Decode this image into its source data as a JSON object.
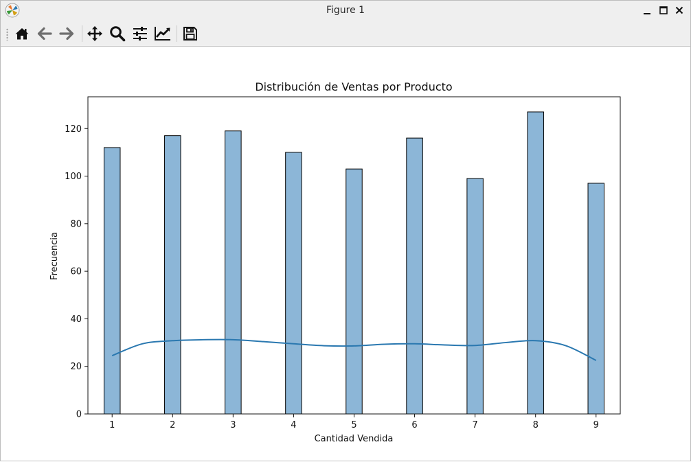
{
  "window": {
    "title": "Figure 1",
    "controls": {
      "minimize_icon": "minimize-icon",
      "maximize_icon": "maximize-icon",
      "close_icon": "close-icon"
    }
  },
  "toolbar": {
    "buttons": [
      {
        "name": "home",
        "icon": "home-icon"
      },
      {
        "name": "back",
        "icon": "back-arrow-icon"
      },
      {
        "name": "forward",
        "icon": "forward-arrow-icon"
      },
      {
        "name": "pan",
        "icon": "move-icon"
      },
      {
        "name": "zoom",
        "icon": "zoom-icon"
      },
      {
        "name": "configure-subplots",
        "icon": "sliders-icon"
      },
      {
        "name": "edit-axis",
        "icon": "chart-line-icon"
      },
      {
        "name": "save",
        "icon": "save-icon"
      }
    ]
  },
  "chart_data": {
    "type": "bar",
    "title": "Distribución de Ventas por Producto",
    "xlabel": "Cantidad Vendida",
    "ylabel": "Frecuencia",
    "x": [
      1,
      2,
      3,
      4,
      5,
      6,
      7,
      8,
      9
    ],
    "values": [
      112,
      117,
      119,
      110,
      103,
      116,
      99,
      127,
      97
    ],
    "xticks": [
      1,
      2,
      3,
      4,
      5,
      6,
      7,
      8,
      9
    ],
    "yticks": [
      0,
      20,
      40,
      60,
      80,
      100,
      120
    ],
    "xlim": [
      0.6,
      9.4
    ],
    "ylim": [
      0,
      133.35
    ],
    "bar_width": 0.2667,
    "bar_color": "#8cb6d7",
    "bar_edge_color": "#000000",
    "kde": {
      "color": "#2a78b0",
      "x": [
        1,
        1.5,
        2,
        2.5,
        3,
        3.5,
        4,
        4.5,
        5,
        5.5,
        6,
        6.5,
        7,
        7.5,
        8,
        8.5,
        9
      ],
      "y": [
        24.5,
        29.5,
        30.8,
        31.2,
        31.2,
        30.4,
        29.5,
        28.7,
        28.6,
        29.3,
        29.5,
        29.0,
        28.8,
        30.0,
        30.8,
        28.7,
        22.5
      ]
    },
    "grid": false,
    "legend": "none"
  }
}
